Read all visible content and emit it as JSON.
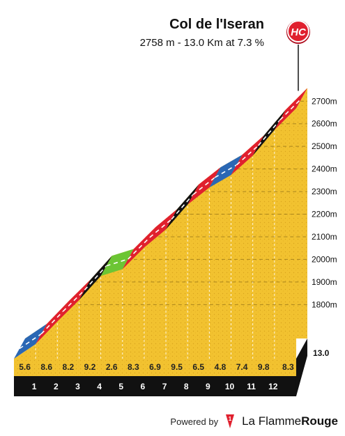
{
  "header": {
    "title": "Col de l'Iseran",
    "subtitle": "2758 m - 13.0 Km at 7.3 %"
  },
  "category_badge": "HC",
  "footer": {
    "powered_by": "Powered by",
    "brand_prefix": "La Flamme",
    "brand_suffix": "Rouge",
    "logo_mark": "1"
  },
  "colors": {
    "fill": "#f2c230",
    "side": "#c9a032",
    "base": "#111111",
    "badge": "#e0202e",
    "gradients": {
      "blue": "#2a67b4",
      "red": "#e0202e",
      "black": "#111111",
      "green": "#6cc534"
    }
  },
  "chart_data": {
    "type": "area",
    "title": "Col de l'Iseran",
    "subtitle": "2758 m - 13.0 Km at 7.3 %",
    "x_unit": "km",
    "y_unit": "m",
    "ylim": [
      1650,
      2758
    ],
    "y_ticks": [
      1800,
      1900,
      2000,
      2100,
      2200,
      2300,
      2400,
      2500,
      2600,
      2700
    ],
    "y_tick_labels": [
      "1800m",
      "1900m",
      "2000m",
      "2100m",
      "2200m",
      "2300m",
      "2400m",
      "2500m",
      "2600m",
      "2700m"
    ],
    "x_ticks": [
      1,
      2,
      3,
      4,
      5,
      6,
      7,
      8,
      9,
      10,
      11,
      12
    ],
    "x_end_label": "13.0",
    "segments": [
      {
        "km_start": 0,
        "km_end": 1,
        "gradient": 5.6,
        "gradient_label": "5.6",
        "color": "blue"
      },
      {
        "km_start": 1,
        "km_end": 2,
        "gradient": 8.6,
        "gradient_label": "8.6",
        "color": "red"
      },
      {
        "km_start": 2,
        "km_end": 3,
        "gradient": 8.2,
        "gradient_label": "8.2",
        "color": "red"
      },
      {
        "km_start": 3,
        "km_end": 4,
        "gradient": 9.2,
        "gradient_label": "9.2",
        "color": "black"
      },
      {
        "km_start": 4,
        "km_end": 5,
        "gradient": 2.6,
        "gradient_label": "2.6",
        "color": "green"
      },
      {
        "km_start": 5,
        "km_end": 6,
        "gradient": 8.3,
        "gradient_label": "8.3",
        "color": "red"
      },
      {
        "km_start": 6,
        "km_end": 7,
        "gradient": 6.9,
        "gradient_label": "6.9",
        "color": "red"
      },
      {
        "km_start": 7,
        "km_end": 8,
        "gradient": 9.5,
        "gradient_label": "9.5",
        "color": "black"
      },
      {
        "km_start": 8,
        "km_end": 9,
        "gradient": 6.5,
        "gradient_label": "6.5",
        "color": "red"
      },
      {
        "km_start": 9,
        "km_end": 10,
        "gradient": 4.8,
        "gradient_label": "4.8",
        "color": "blue"
      },
      {
        "km_start": 10,
        "km_end": 11,
        "gradient": 7.4,
        "gradient_label": "7.4",
        "color": "red"
      },
      {
        "km_start": 11,
        "km_end": 12,
        "gradient": 9.8,
        "gradient_label": "9.8",
        "color": "black"
      },
      {
        "km_start": 12,
        "km_end": 13,
        "gradient": 8.3,
        "gradient_label": "8.3",
        "color": "red"
      }
    ],
    "summit_elevation": 2758,
    "grid": true
  }
}
